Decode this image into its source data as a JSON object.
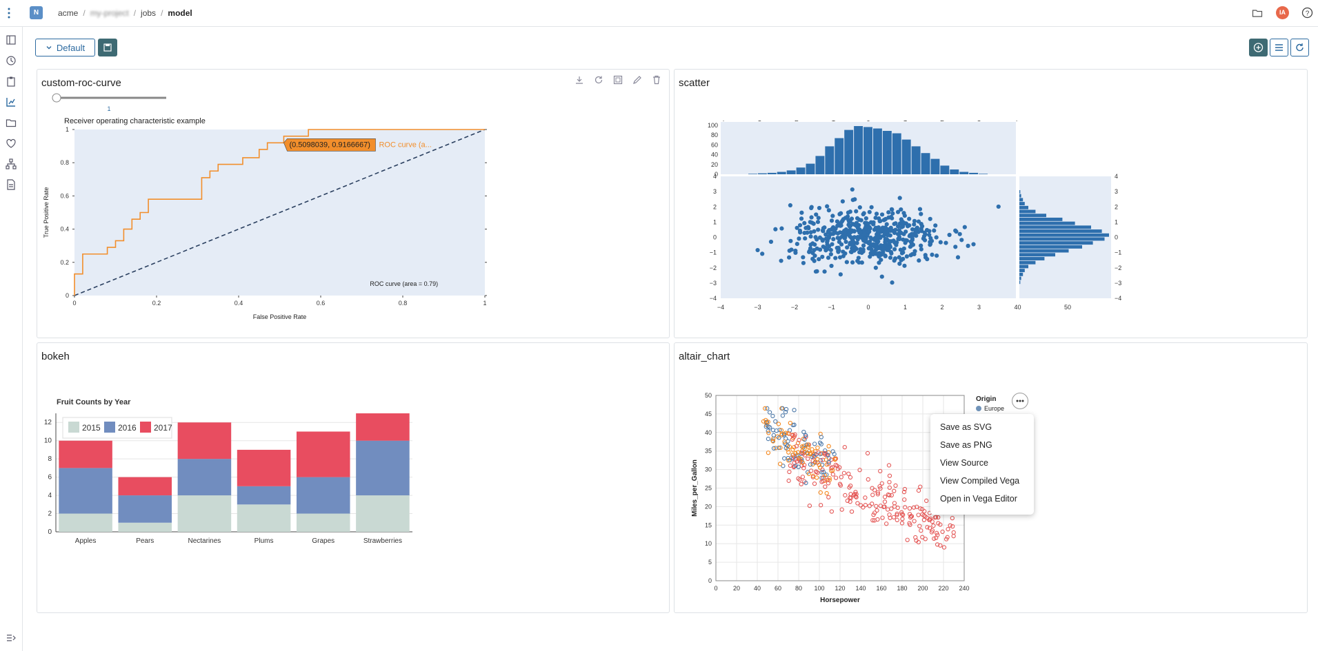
{
  "breadcrumb": {
    "org": "acme",
    "project": "my-project",
    "section": "jobs",
    "current": "model"
  },
  "project_badge": "N",
  "user_initials": "IA",
  "toolbar": {
    "view_label": "Default"
  },
  "panels": {
    "roc": {
      "title": "custom-roc-curve"
    },
    "scatter": {
      "title": "scatter"
    },
    "bokeh": {
      "title": "bokeh"
    },
    "altair": {
      "title": "altair_chart"
    }
  },
  "roc_slider_value": "1",
  "altair_menu": [
    "Save as SVG",
    "Save as PNG",
    "View Source",
    "View Compiled Vega",
    "Open in Vega Editor"
  ],
  "colors": {
    "accent": "#2c6aa0",
    "roc_line": "#f28e2b",
    "scatter_blue": "#2e6fad",
    "plot_bg": "#e5ecf6",
    "avatar": "#e8684a"
  },
  "chart_data": [
    {
      "type": "line",
      "title": "Receiver operating characteristic example",
      "xlabel": "False Positive Rate",
      "ylabel": "True Positive Rate",
      "xlim": [
        0,
        1
      ],
      "ylim": [
        0,
        1
      ],
      "x_ticks": [
        "0",
        "0.2",
        "0.4",
        "0.6",
        "0.8",
        "1"
      ],
      "y_ticks": [
        "0",
        "0.2",
        "0.4",
        "0.6",
        "0.8",
        "1"
      ],
      "series": [
        {
          "name": "ROC curve (area = 0.79)",
          "x": [
            0,
            0,
            0.02,
            0.02,
            0.08,
            0.08,
            0.1,
            0.1,
            0.12,
            0.12,
            0.14,
            0.14,
            0.16,
            0.16,
            0.18,
            0.18,
            0.31,
            0.31,
            0.33,
            0.33,
            0.35,
            0.35,
            0.41,
            0.41,
            0.45,
            0.45,
            0.47,
            0.47,
            0.51,
            0.51,
            0.53,
            0.53,
            0.57,
            0.57,
            1
          ],
          "y": [
            0,
            0.13,
            0.13,
            0.25,
            0.25,
            0.29,
            0.29,
            0.33,
            0.33,
            0.4,
            0.4,
            0.46,
            0.46,
            0.5,
            0.5,
            0.58,
            0.58,
            0.71,
            0.71,
            0.75,
            0.75,
            0.79,
            0.79,
            0.83,
            0.83,
            0.88,
            0.88,
            0.92,
            0.92,
            0.96,
            0.96,
            0.96,
            0.96,
            1,
            1
          ]
        },
        {
          "name": "diagonal",
          "x": [
            0,
            1
          ],
          "y": [
            0,
            1
          ],
          "dashed": true
        }
      ],
      "tooltip": {
        "label": "(0.5098039, 0.9166667)",
        "series_label": "ROC curve (a..."
      },
      "legend_text": "ROC curve (area = 0.79)"
    },
    {
      "type": "scatter",
      "subtype": "scatter with marginal histograms",
      "xlim": [
        -4,
        4
      ],
      "ylim": [
        -4,
        4
      ],
      "x_ticks": [
        "−4",
        "−3",
        "−2",
        "−1",
        "0",
        "1",
        "2",
        "3",
        "4"
      ],
      "y_ticks": [
        "4",
        "3",
        "2",
        "1",
        "0",
        "−1",
        "−2",
        "−3",
        "−4"
      ],
      "top_hist_ticks": [
        "100",
        "80",
        "60",
        "40",
        "20",
        "0"
      ],
      "top_hist_values": [
        1,
        2,
        3,
        5,
        8,
        14,
        22,
        38,
        58,
        75,
        92,
        100,
        98,
        95,
        90,
        85,
        72,
        58,
        44,
        32,
        18,
        10,
        5,
        3,
        1
      ],
      "right_hist_ticks": [
        "0",
        "50"
      ],
      "right_hist_values": [
        1,
        2,
        4,
        6,
        10,
        18,
        30,
        48,
        62,
        80,
        92,
        100,
        95,
        82,
        70,
        55,
        40,
        28,
        18,
        10,
        6,
        4,
        2,
        1
      ]
    },
    {
      "type": "bar",
      "stacked": true,
      "title": "Fruit Counts by Year",
      "categories": [
        "Apples",
        "Pears",
        "Nectarines",
        "Plums",
        "Grapes",
        "Strawberries"
      ],
      "series": [
        {
          "name": "2015",
          "values": [
            2,
            1,
            4,
            3,
            2,
            4
          ],
          "color": "#c9d9d3"
        },
        {
          "name": "2016",
          "values": [
            5,
            3,
            4,
            2,
            4,
            6
          ],
          "color": "#718dbf"
        },
        {
          "name": "2017",
          "values": [
            3,
            2,
            4,
            4,
            5,
            3
          ],
          "color": "#e84d60"
        }
      ],
      "ylim": [
        0,
        13
      ],
      "y_ticks": [
        "0",
        "2",
        "4",
        "6",
        "8",
        "10",
        "12"
      ]
    },
    {
      "type": "scatter",
      "xlabel": "Horsepower",
      "ylabel": "Miles_per_Gallon",
      "xlim": [
        0,
        240
      ],
      "ylim": [
        0,
        50
      ],
      "x_ticks": [
        "0",
        "20",
        "40",
        "60",
        "80",
        "100",
        "120",
        "140",
        "160",
        "180",
        "200",
        "220",
        "240"
      ],
      "y_ticks": [
        "0",
        "5",
        "10",
        "15",
        "20",
        "25",
        "30",
        "35",
        "40",
        "45",
        "50"
      ],
      "legend": {
        "title": "Origin",
        "entries": [
          {
            "name": "Europe",
            "color": "#4c78a8"
          }
        ]
      }
    }
  ]
}
